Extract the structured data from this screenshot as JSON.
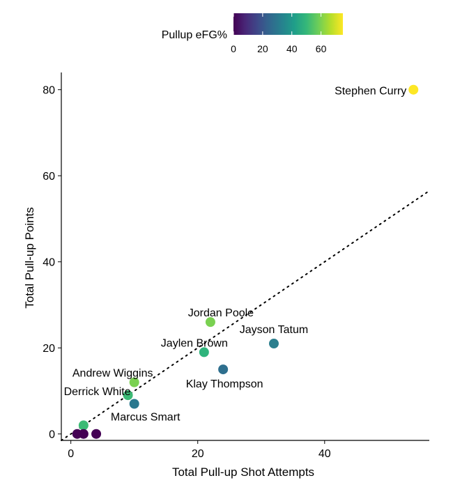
{
  "chart_data": {
    "type": "scatter",
    "title": "",
    "xlabel": "Total Pull-up Shot Attempts",
    "ylabel": "Total Pull-up Points",
    "xlim": [
      -1.5,
      56.5
    ],
    "ylim": [
      -1.5,
      84
    ],
    "x_ticks": [
      0,
      20,
      40
    ],
    "y_ticks": [
      0,
      20,
      40,
      60,
      80
    ],
    "grid": false,
    "color_scale": {
      "title": "Pullup eFG%",
      "min": 0,
      "max": 75,
      "ticks": [
        0,
        20,
        40,
        60
      ],
      "palette": [
        "#440154",
        "#482878",
        "#3e4989",
        "#31688e",
        "#26828e",
        "#1f9e89",
        "#35b779",
        "#6ece58",
        "#b5de2b",
        "#fde725"
      ],
      "placement": "top"
    },
    "reference_line": {
      "style": "dotted",
      "slope": 1.0,
      "intercept": 0,
      "color": "#000000"
    },
    "points": [
      {
        "x": 54,
        "y": 80,
        "efg": 74,
        "color": "#fde725",
        "label": "Stephen Curry"
      },
      {
        "x": 22,
        "y": 26,
        "efg": 59,
        "color": "#7ad151",
        "label": "Jordan Poole"
      },
      {
        "x": 32,
        "y": 21,
        "efg": 33,
        "color": "#2c7f8e",
        "label": "Jayson Tatum"
      },
      {
        "x": 21,
        "y": 19,
        "efg": 45,
        "color": "#2fb47c",
        "label": "Jaylen Brown"
      },
      {
        "x": 24,
        "y": 15,
        "efg": 31,
        "color": "#2e6f8e",
        "label": "Klay Thompson"
      },
      {
        "x": 10,
        "y": 12,
        "efg": 60,
        "color": "#7ad151",
        "label": "Andrew Wiggins"
      },
      {
        "x": 9,
        "y": 9,
        "efg": 50,
        "color": "#3bbb75",
        "label": "Derrick White"
      },
      {
        "x": 10,
        "y": 7,
        "efg": 35,
        "color": "#2a788e",
        "label": "Marcus Smart"
      },
      {
        "x": 2,
        "y": 2,
        "efg": 50,
        "color": "#3bbb75",
        "label": ""
      },
      {
        "x": 1,
        "y": 0,
        "efg": 0,
        "color": "#440154",
        "label": ""
      },
      {
        "x": 2,
        "y": 0,
        "efg": 0,
        "color": "#440154",
        "label": ""
      },
      {
        "x": 4,
        "y": 0,
        "efg": 0,
        "color": "#440154",
        "label": ""
      }
    ]
  }
}
